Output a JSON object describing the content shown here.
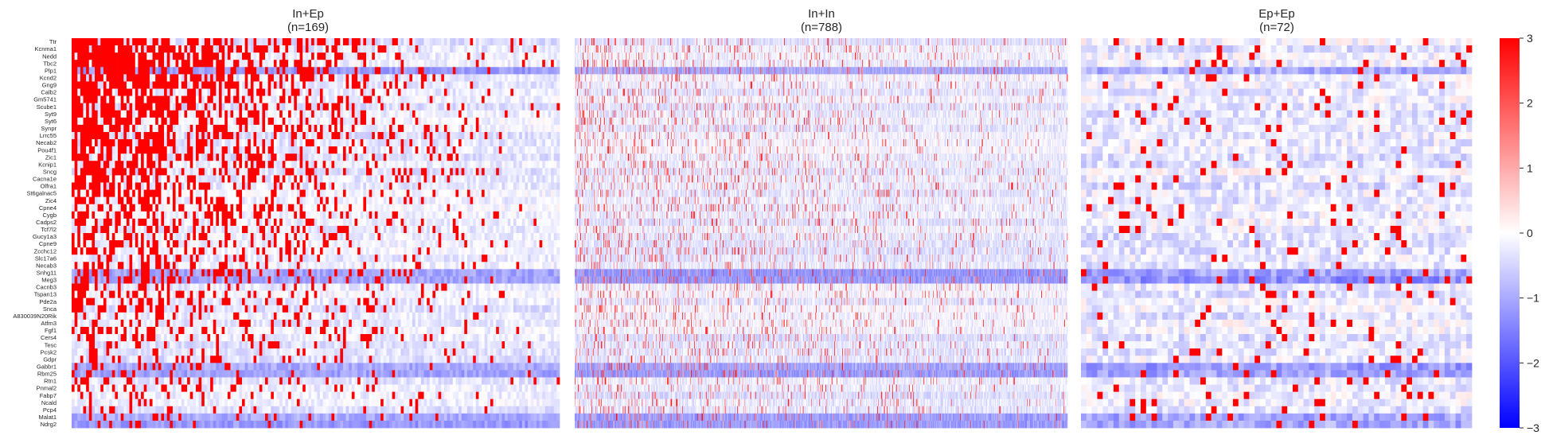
{
  "chart_data": {
    "type": "heatmap",
    "colormap": [
      "#0000ff",
      "#ffffff",
      "#ff0000"
    ],
    "color_range": [
      -3,
      3
    ],
    "colorbar": {
      "ticks": [
        3,
        2,
        1,
        0,
        -1,
        -2,
        -3
      ],
      "tick_labels": [
        "3",
        "2",
        "1",
        "0",
        "−1",
        "−2",
        "−3"
      ]
    },
    "genes": [
      "Ttr",
      "Kcnma1",
      "Nedd",
      "Tbc2",
      "Plp1",
      "Kcnd2",
      "Gng9",
      "Calb2",
      "Gm5741",
      "Scube1",
      "Syt9",
      "Syt6",
      "Synpr",
      "Lrrc55",
      "Necab2",
      "Pou4f1",
      "Zic1",
      "Kcnip1",
      "Sncg",
      "Cacna1e",
      "Olfra1",
      "St6galnac5",
      "Zic4",
      "Cpne4",
      "Cygb",
      "Cadps2",
      "Tcf7l2",
      "Gucy1a3",
      "Cpne9",
      "Zcchc12",
      "Slc17a6",
      "Necab3",
      "Snhg11",
      "Meg3",
      "Cacnb3",
      "Tspan13",
      "Pde2a",
      "Snca",
      "A830039N20Rik",
      "Atfm3",
      "Fgf1",
      "Cers4",
      "Tesc",
      "Pcsk2",
      "Gdpr",
      "Gabbr1",
      "Rbm25",
      "Rtn1",
      "Pnmal2",
      "Fabp7",
      "Ncald",
      "Pcp4",
      "Malat1",
      "Ndrg2"
    ],
    "panels": [
      {
        "title": "In+Ep",
        "subtitle": "(n=169)",
        "n": 169,
        "label_genes": true
      },
      {
        "title": "In+In",
        "subtitle": "(n=788)",
        "n": 788,
        "label_genes": false
      },
      {
        "title": "Ep+Ep",
        "subtitle": "(n=72)",
        "n": 72,
        "label_genes": false
      }
    ]
  }
}
